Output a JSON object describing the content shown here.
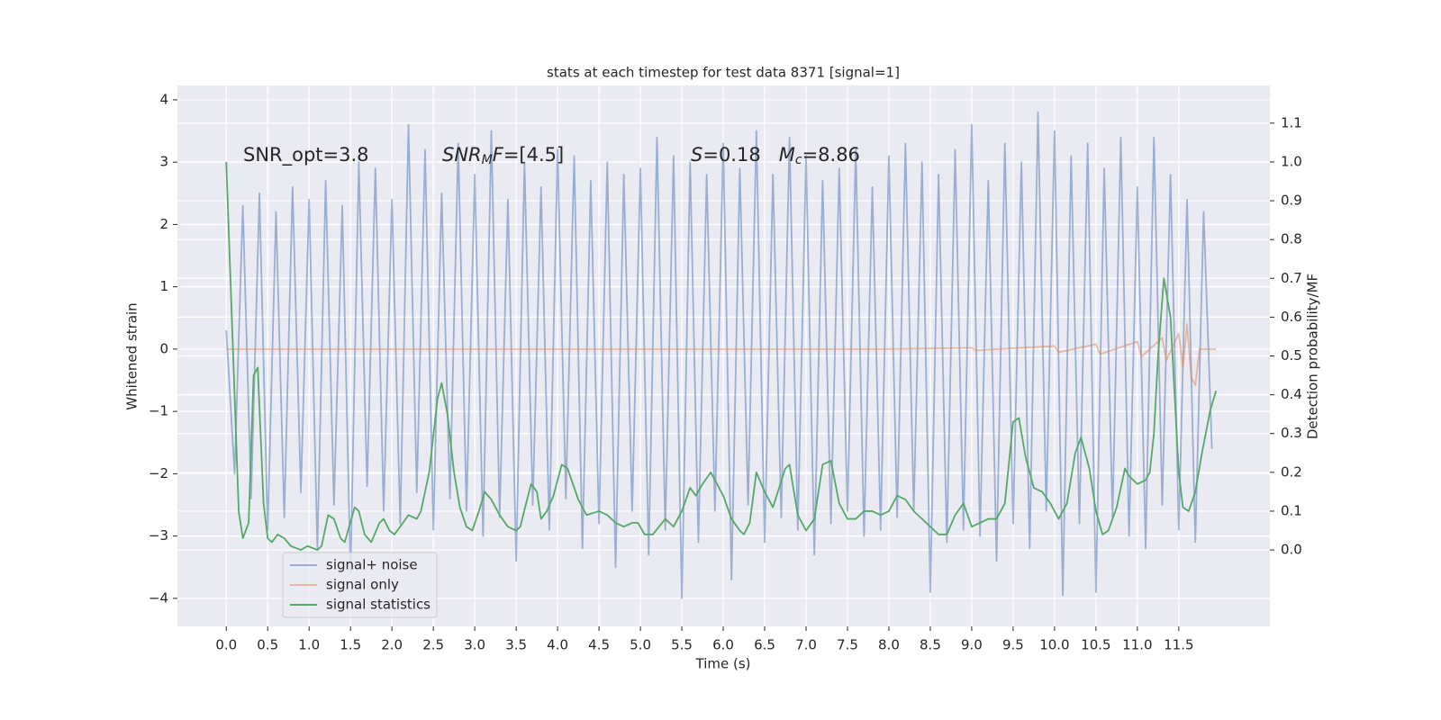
{
  "chart_data": {
    "type": "line",
    "title": "stats at each timestep for test data 8371 [signal=1]",
    "xlabel": "Time (s)",
    "ylabel": "Whitened strain",
    "y2label": "Detection probability/MF",
    "annotations": [
      [
        {
          "text": "SNR_opt=3.8"
        }
      ],
      [
        {
          "text": "SNR",
          "italic": true
        },
        {
          "text": "M",
          "italic": true,
          "sub": true
        },
        {
          "text": "F",
          "italic": true
        },
        {
          "text": "=[4.5]"
        }
      ],
      [
        {
          "text": "S",
          "italic": true
        },
        {
          "text": "=0.18   "
        },
        {
          "text": "M",
          "italic": true
        },
        {
          "text": "c",
          "italic": true,
          "sub": true
        },
        {
          "text": "=8.86"
        }
      ]
    ],
    "xlim": [
      -0.59,
      12.6
    ],
    "ylim": [
      -4.45,
      4.23
    ],
    "y2lim": [
      -0.197,
      1.197
    ],
    "xticks": [
      {
        "value": 0,
        "label": "0.0"
      },
      {
        "value": 0.5,
        "label": "0.5"
      },
      {
        "value": 1,
        "label": "1.0"
      },
      {
        "value": 1.5,
        "label": "1.5"
      },
      {
        "value": 2,
        "label": "2.0"
      },
      {
        "value": 2.5,
        "label": "2.5"
      },
      {
        "value": 3,
        "label": "3.0"
      },
      {
        "value": 3.5,
        "label": "3.5"
      },
      {
        "value": 4,
        "label": "4.0"
      },
      {
        "value": 4.5,
        "label": "4.5"
      },
      {
        "value": 5,
        "label": "5.0"
      },
      {
        "value": 5.5,
        "label": "5.5"
      },
      {
        "value": 6,
        "label": "6.0"
      },
      {
        "value": 6.5,
        "label": "6.5"
      },
      {
        "value": 7,
        "label": "7.0"
      },
      {
        "value": 7.5,
        "label": "7.5"
      },
      {
        "value": 8,
        "label": "8.0"
      },
      {
        "value": 8.5,
        "label": "8.5"
      },
      {
        "value": 9,
        "label": "9.0"
      },
      {
        "value": 9.5,
        "label": "9.5"
      },
      {
        "value": 10,
        "label": "10.0"
      },
      {
        "value": 10.5,
        "label": "10.5"
      },
      {
        "value": 11,
        "label": "11.0"
      },
      {
        "value": 11.5,
        "label": "11.5"
      }
    ],
    "yticks": [
      {
        "value": -4,
        "label": "−4"
      },
      {
        "value": -3,
        "label": "−3"
      },
      {
        "value": -2,
        "label": "−2"
      },
      {
        "value": -1,
        "label": "−1"
      },
      0,
      1,
      2,
      3,
      4
    ],
    "y2ticks": [
      {
        "value": 0,
        "label": "0.0"
      },
      {
        "value": 0.1,
        "label": "0.1"
      },
      {
        "value": 0.2,
        "label": "0.2"
      },
      {
        "value": 0.3,
        "label": "0.3"
      },
      {
        "value": 0.4,
        "label": "0.4"
      },
      {
        "value": 0.5,
        "label": "0.5"
      },
      {
        "value": 0.6,
        "label": "0.6"
      },
      {
        "value": 0.7,
        "label": "0.7"
      },
      {
        "value": 0.8,
        "label": "0.8"
      },
      {
        "value": 0.9,
        "label": "0.9"
      },
      {
        "value": 1,
        "label": "1.0"
      },
      {
        "value": 1.1,
        "label": "1.1"
      }
    ],
    "grid": true,
    "legend": "lower left",
    "series": [
      {
        "name": "signal+ noise",
        "color": "#4c72b0",
        "opacity": 0.5,
        "x": [
          0,
          0.1,
          0.2,
          0.3,
          0.4,
          0.5,
          0.6,
          0.7,
          0.8,
          0.9,
          1,
          1.1,
          1.2,
          1.3,
          1.4,
          1.5,
          1.6,
          1.7,
          1.8,
          1.9,
          2,
          2.1,
          2.2,
          2.3,
          2.4,
          2.5,
          2.6,
          2.7,
          2.8,
          2.9,
          3,
          3.1,
          3.2,
          3.3,
          3.4,
          3.5,
          3.6,
          3.7,
          3.8,
          3.9,
          4,
          4.1,
          4.2,
          4.3,
          4.4,
          4.5,
          4.6,
          4.7,
          4.8,
          4.9,
          5,
          5.1,
          5.2,
          5.3,
          5.4,
          5.5,
          5.6,
          5.7,
          5.8,
          5.9,
          6,
          6.1,
          6.2,
          6.3,
          6.4,
          6.5,
          6.6,
          6.7,
          6.8,
          6.9,
          7,
          7.1,
          7.2,
          7.3,
          7.4,
          7.5,
          7.6,
          7.7,
          7.8,
          7.9,
          8,
          8.1,
          8.2,
          8.3,
          8.4,
          8.5,
          8.6,
          8.7,
          8.8,
          8.9,
          9,
          9.1,
          9.2,
          9.3,
          9.4,
          9.5,
          9.6,
          9.7,
          9.8,
          9.9,
          10,
          10.1,
          10.2,
          10.3,
          10.4,
          10.5,
          10.6,
          10.7,
          10.8,
          10.9,
          11,
          11.1,
          11.2,
          11.3,
          11.4,
          11.5,
          11.6,
          11.7,
          11.8,
          11.9
        ],
        "values": [
          0.3,
          -2.0,
          2.3,
          -2.4,
          2.5,
          -2.9,
          2.2,
          -2.7,
          2.6,
          -2.3,
          2.4,
          -3.2,
          2.7,
          -2.5,
          2.3,
          -3.6,
          3.0,
          -2.2,
          2.9,
          -2.6,
          2.4,
          -2.8,
          3.6,
          -2.3,
          3.2,
          -2.9,
          2.5,
          -2.4,
          3.3,
          -2.6,
          2.8,
          -3.0,
          3.5,
          -2.7,
          2.4,
          -3.4,
          3.0,
          -2.5,
          2.6,
          -2.9,
          3.2,
          -2.4,
          3.1,
          -3.2,
          2.7,
          -2.8,
          3.0,
          -3.5,
          2.8,
          -2.6,
          2.9,
          -3.3,
          3.4,
          -2.9,
          3.1,
          -4.0,
          3.0,
          -3.1,
          2.8,
          -2.6,
          3.3,
          -3.7,
          2.9,
          -2.5,
          3.5,
          -3.1,
          2.8,
          -2.7,
          3.4,
          -2.9,
          3.1,
          -3.3,
          2.7,
          -2.8,
          2.9,
          -2.6,
          3.2,
          -3.0,
          2.6,
          -2.9,
          3.1,
          -2.7,
          3.3,
          -2.6,
          3.0,
          -3.9,
          2.8,
          -3.1,
          3.2,
          -2.9,
          3.6,
          -3.0,
          2.7,
          -3.4,
          3.3,
          -2.8,
          3.0,
          -3.2,
          3.8,
          -2.6,
          3.5,
          -3.95,
          3.1,
          -2.8,
          3.3,
          -3.9,
          2.9,
          -2.7,
          3.4,
          -3.0,
          2.6,
          -3.2,
          3.4,
          -2.5,
          2.8,
          -2.9,
          2.4,
          -3.1,
          2.2,
          -1.6
        ]
      },
      {
        "name": "signal only",
        "color": "#dd8452",
        "opacity": 0.5,
        "x": [
          0,
          8,
          9,
          9.05,
          10,
          10.05,
          10.5,
          10.55,
          11,
          11.05,
          11.3,
          11.35,
          11.5,
          11.55,
          11.6,
          11.65,
          11.7,
          11.75,
          11.95
        ],
        "values": [
          0,
          0,
          0.02,
          -0.02,
          0.05,
          -0.05,
          0.08,
          -0.08,
          0.12,
          -0.12,
          0.18,
          -0.18,
          0.25,
          -0.3,
          0.4,
          -0.45,
          -0.58,
          0,
          0
        ]
      },
      {
        "name": "signal statistics",
        "color": "#55a868",
        "opacity": 1,
        "axis": "y2",
        "x": [
          0,
          0.15,
          0.2,
          0.27,
          0.33,
          0.38,
          0.45,
          0.5,
          0.55,
          0.62,
          0.7,
          0.78,
          0.9,
          0.98,
          1.1,
          1.15,
          1.23,
          1.3,
          1.38,
          1.43,
          1.55,
          1.6,
          1.67,
          1.75,
          1.85,
          1.9,
          1.97,
          2.03,
          2.1,
          2.2,
          2.3,
          2.35,
          2.45,
          2.55,
          2.6,
          2.67,
          2.75,
          2.82,
          2.9,
          2.97,
          3.05,
          3.12,
          3.2,
          3.3,
          3.4,
          3.5,
          3.55,
          3.62,
          3.68,
          3.75,
          3.8,
          3.87,
          3.95,
          4.05,
          4.12,
          4.25,
          4.35,
          4.5,
          4.6,
          4.7,
          4.8,
          4.9,
          4.97,
          5.05,
          5.15,
          5.3,
          5.4,
          5.5,
          5.6,
          5.67,
          5.75,
          5.85,
          5.9,
          6.0,
          6.1,
          6.2,
          6.25,
          6.32,
          6.4,
          6.5,
          6.6,
          6.75,
          6.8,
          6.9,
          7.0,
          7.1,
          7.2,
          7.3,
          7.4,
          7.5,
          7.6,
          7.7,
          7.8,
          7.9,
          8.0,
          8.1,
          8.2,
          8.3,
          8.45,
          8.6,
          8.7,
          8.8,
          8.9,
          9.0,
          9.1,
          9.2,
          9.3,
          9.4,
          9.5,
          9.57,
          9.65,
          9.75,
          9.85,
          9.95,
          10.05,
          10.15,
          10.25,
          10.32,
          10.42,
          10.5,
          10.58,
          10.65,
          10.75,
          10.85,
          10.9,
          11.0,
          11.1,
          11.15,
          11.2,
          11.25,
          11.32,
          11.4,
          11.5,
          11.55,
          11.62,
          11.7,
          11.78,
          11.88,
          11.95
        ],
        "values": [
          1.0,
          0.1,
          0.03,
          0.07,
          0.45,
          0.47,
          0.12,
          0.03,
          0.02,
          0.04,
          0.03,
          0.01,
          0.0,
          0.01,
          0.0,
          0.01,
          0.09,
          0.08,
          0.03,
          0.02,
          0.11,
          0.1,
          0.04,
          0.02,
          0.07,
          0.08,
          0.05,
          0.04,
          0.06,
          0.09,
          0.08,
          0.1,
          0.2,
          0.39,
          0.43,
          0.35,
          0.2,
          0.11,
          0.06,
          0.05,
          0.1,
          0.15,
          0.13,
          0.09,
          0.06,
          0.05,
          0.06,
          0.12,
          0.17,
          0.15,
          0.08,
          0.1,
          0.14,
          0.22,
          0.21,
          0.13,
          0.09,
          0.1,
          0.09,
          0.07,
          0.06,
          0.07,
          0.07,
          0.04,
          0.04,
          0.08,
          0.06,
          0.1,
          0.16,
          0.14,
          0.17,
          0.2,
          0.18,
          0.14,
          0.08,
          0.05,
          0.04,
          0.07,
          0.2,
          0.15,
          0.11,
          0.21,
          0.22,
          0.09,
          0.05,
          0.08,
          0.22,
          0.23,
          0.12,
          0.08,
          0.08,
          0.1,
          0.1,
          0.09,
          0.1,
          0.14,
          0.13,
          0.1,
          0.07,
          0.04,
          0.04,
          0.09,
          0.12,
          0.06,
          0.07,
          0.08,
          0.08,
          0.12,
          0.33,
          0.34,
          0.24,
          0.16,
          0.15,
          0.12,
          0.08,
          0.12,
          0.25,
          0.29,
          0.21,
          0.1,
          0.04,
          0.05,
          0.11,
          0.21,
          0.19,
          0.17,
          0.18,
          0.2,
          0.3,
          0.5,
          0.7,
          0.6,
          0.2,
          0.11,
          0.1,
          0.15,
          0.25,
          0.36,
          0.41
        ]
      }
    ]
  }
}
